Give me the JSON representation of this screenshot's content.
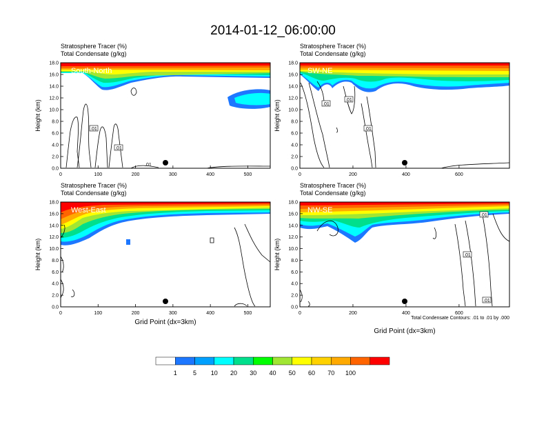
{
  "chart_data": {
    "type": "heatmap",
    "title": "2014-01-12_06:00:00",
    "variable_label": "Stratosphere Tracer   (%)",
    "contour_label": "Total Condensate   (g/kg)",
    "ylabel": "Height (km)",
    "xlabel": "Grid Point (dx=3km)",
    "contour_note": "Total Condensate Contours: .01 to .01 by .000",
    "colorbar": {
      "levels": [
        "1",
        "5",
        "10",
        "20",
        "30",
        "40",
        "50",
        "60",
        "70",
        "100"
      ],
      "colors": [
        "#ffffff",
        "#1e78ff",
        "#00a0ff",
        "#00ffff",
        "#00e08c",
        "#00ff00",
        "#a0e632",
        "#ffff00",
        "#ffd200",
        "#ffaa00",
        "#ff6400",
        "#ff0000"
      ]
    },
    "panels": [
      {
        "name": "South-North",
        "xlim": [
          0,
          560
        ],
        "xticks": [
          0,
          100,
          200,
          300,
          400,
          500
        ],
        "ylim": [
          0,
          18
        ],
        "yticks": [
          "0.0",
          "2.0",
          "4.0",
          "6.0",
          "8.0",
          "10.0",
          "12.0",
          "14.0",
          "16.0",
          "18.0"
        ],
        "marker_x": 280,
        "labels": [
          ".01",
          ".01",
          ".01"
        ]
      },
      {
        "name": "SW-NE",
        "xlim": [
          0,
          790
        ],
        "xticks": [
          0,
          200,
          400,
          600
        ],
        "ylim": [
          0,
          18
        ],
        "yticks": [
          "0.0",
          "2.0",
          "4.0",
          "6.0",
          "8.0",
          "10.0",
          "12.0",
          "14.0",
          "16.0",
          "18.0"
        ],
        "marker_x": 395,
        "labels": [
          ".01",
          ".01",
          ".01"
        ]
      },
      {
        "name": "West-East",
        "xlim": [
          0,
          560
        ],
        "xticks": [
          0,
          100,
          200,
          300,
          400,
          500
        ],
        "ylim": [
          0,
          18
        ],
        "yticks": [
          "0.0",
          "2.0",
          "4.0",
          "6.0",
          "8.0",
          "10.0",
          "12.0",
          "14.0",
          "16.0",
          "18.0"
        ],
        "marker_x": 280,
        "labels": []
      },
      {
        "name": "NW-SE",
        "xlim": [
          0,
          790
        ],
        "xticks": [
          0,
          200,
          400,
          600
        ],
        "ylim": [
          0,
          18
        ],
        "yticks": [
          "0.0",
          "2.0",
          "4.0",
          "6.0",
          "8.0",
          "10.0",
          "12.0",
          "14.0",
          "16.0",
          "18.0"
        ],
        "marker_x": 395,
        "labels": [
          ".01",
          ".01",
          ".01"
        ]
      }
    ]
  }
}
